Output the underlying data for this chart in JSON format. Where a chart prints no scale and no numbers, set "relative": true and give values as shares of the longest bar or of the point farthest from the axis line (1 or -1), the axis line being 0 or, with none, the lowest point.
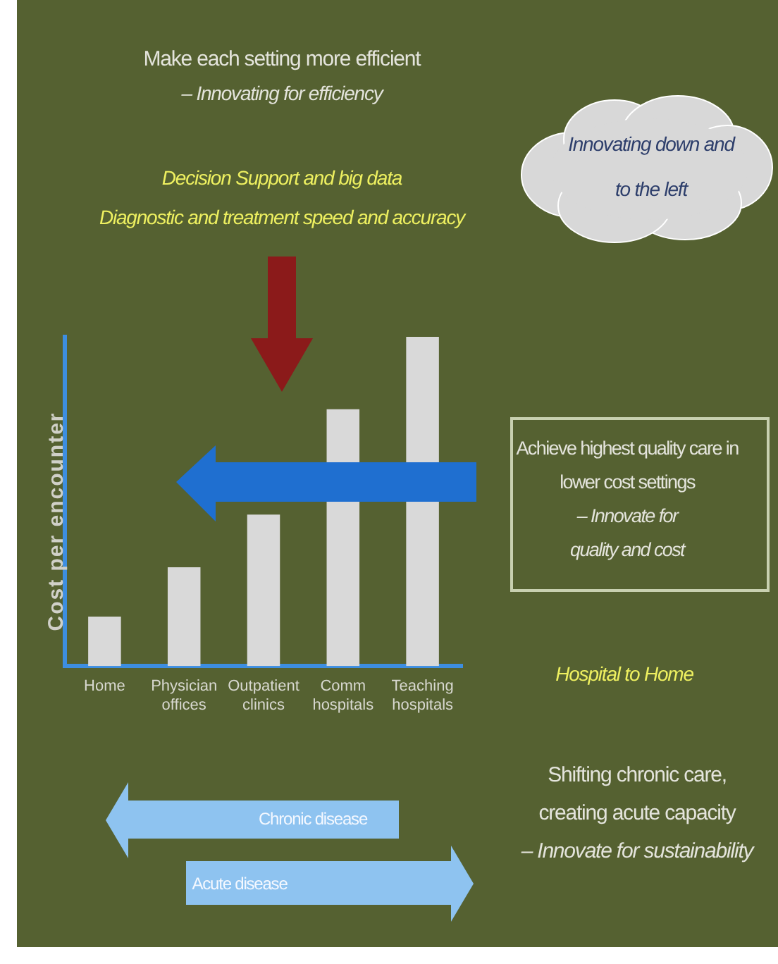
{
  "chart_data": {
    "type": "bar",
    "relative": true,
    "categories": [
      "Home",
      "Physician offices",
      "Outpatient clinics",
      "Comm hospitals",
      "Teaching hospitals"
    ],
    "values": [
      0.15,
      0.3,
      0.46,
      0.78,
      1
    ],
    "color": "#d9d9d9",
    "ylabel": "Cost per encounter",
    "grid": false,
    "legend": false,
    "annotations": [
      "Make each setting more efficient",
      "– Innovating for efficiency",
      "Decision Support and big data",
      "Diagnostic and treatment speed and accuracy",
      "Innovating down and",
      "to the left",
      "Achieve highest quality care in",
      "lower cost settings",
      "– Innovate for",
      "quality and cost",
      "Hospital to Home",
      "Shifting chronic care,",
      "creating acute capacity",
      "– Innovate for sustainability",
      "Chronic disease",
      "Acute disease"
    ]
  }
}
